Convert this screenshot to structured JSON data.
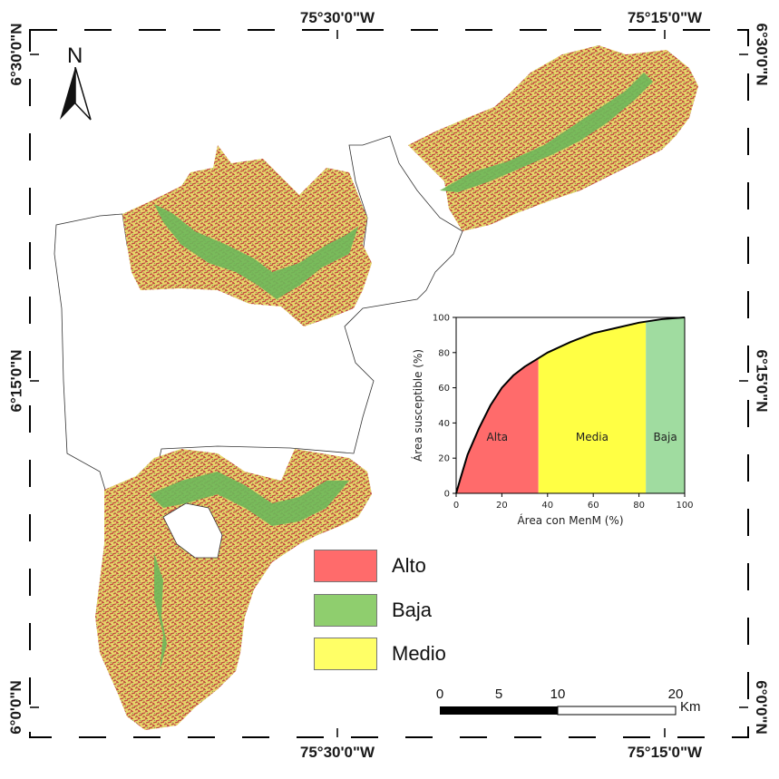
{
  "map": {
    "coords": {
      "top_left": "75°30'0\"W",
      "top_right": "75°15'0\"W",
      "bottom_left": "75°30'0\"W",
      "bottom_right": "75°15'0\"W",
      "left_top": "6°30'0\"N",
      "left_mid": "6°15'0\"N",
      "left_bottom": "6°0'0\"N",
      "right_top": "6°30'0\"N",
      "right_mid": "6°15'0\"N",
      "right_bottom": "6°0'0\"N"
    },
    "north_label": "N",
    "legend": {
      "items": [
        {
          "label": "Alto",
          "color": "#ff6b6b"
        },
        {
          "label": "Baja",
          "color": "#8fce6e"
        },
        {
          "label": "Medio",
          "color": "#ffff66"
        }
      ]
    },
    "scale_bar": {
      "ticks": [
        "0",
        "5",
        "10",
        "20"
      ],
      "unit": "Km"
    },
    "colors": {
      "high": "#c0453f",
      "medium": "#e6d56a",
      "low": "#6db85a",
      "boundary": "#333333"
    }
  },
  "chart_data": {
    "type": "area",
    "xlabel": "Área con MenM (%)",
    "ylabel": "Área susceptible (%)",
    "xlim": [
      0,
      100
    ],
    "ylim": [
      0,
      100
    ],
    "x_ticks": [
      "0",
      "20",
      "40",
      "60",
      "80",
      "100"
    ],
    "y_ticks": [
      "0",
      "20",
      "40",
      "60",
      "80",
      "100"
    ],
    "curve": {
      "x": [
        0,
        2,
        5,
        10,
        15,
        20,
        25,
        30,
        35,
        40,
        50,
        60,
        70,
        80,
        90,
        100
      ],
      "y": [
        0,
        9,
        22,
        37,
        50,
        60,
        67,
        72,
        76,
        80,
        86,
        91,
        94,
        97,
        99,
        100
      ]
    },
    "zones": [
      {
        "label": "Alta",
        "x_start": 0,
        "x_end": 36,
        "color": "#ff6b6b"
      },
      {
        "label": "Media",
        "x_start": 36,
        "x_end": 83,
        "color": "#ffff44"
      },
      {
        "label": "Baja",
        "x_start": 83,
        "x_end": 100,
        "color": "#a0dca0"
      }
    ],
    "grid": false
  }
}
